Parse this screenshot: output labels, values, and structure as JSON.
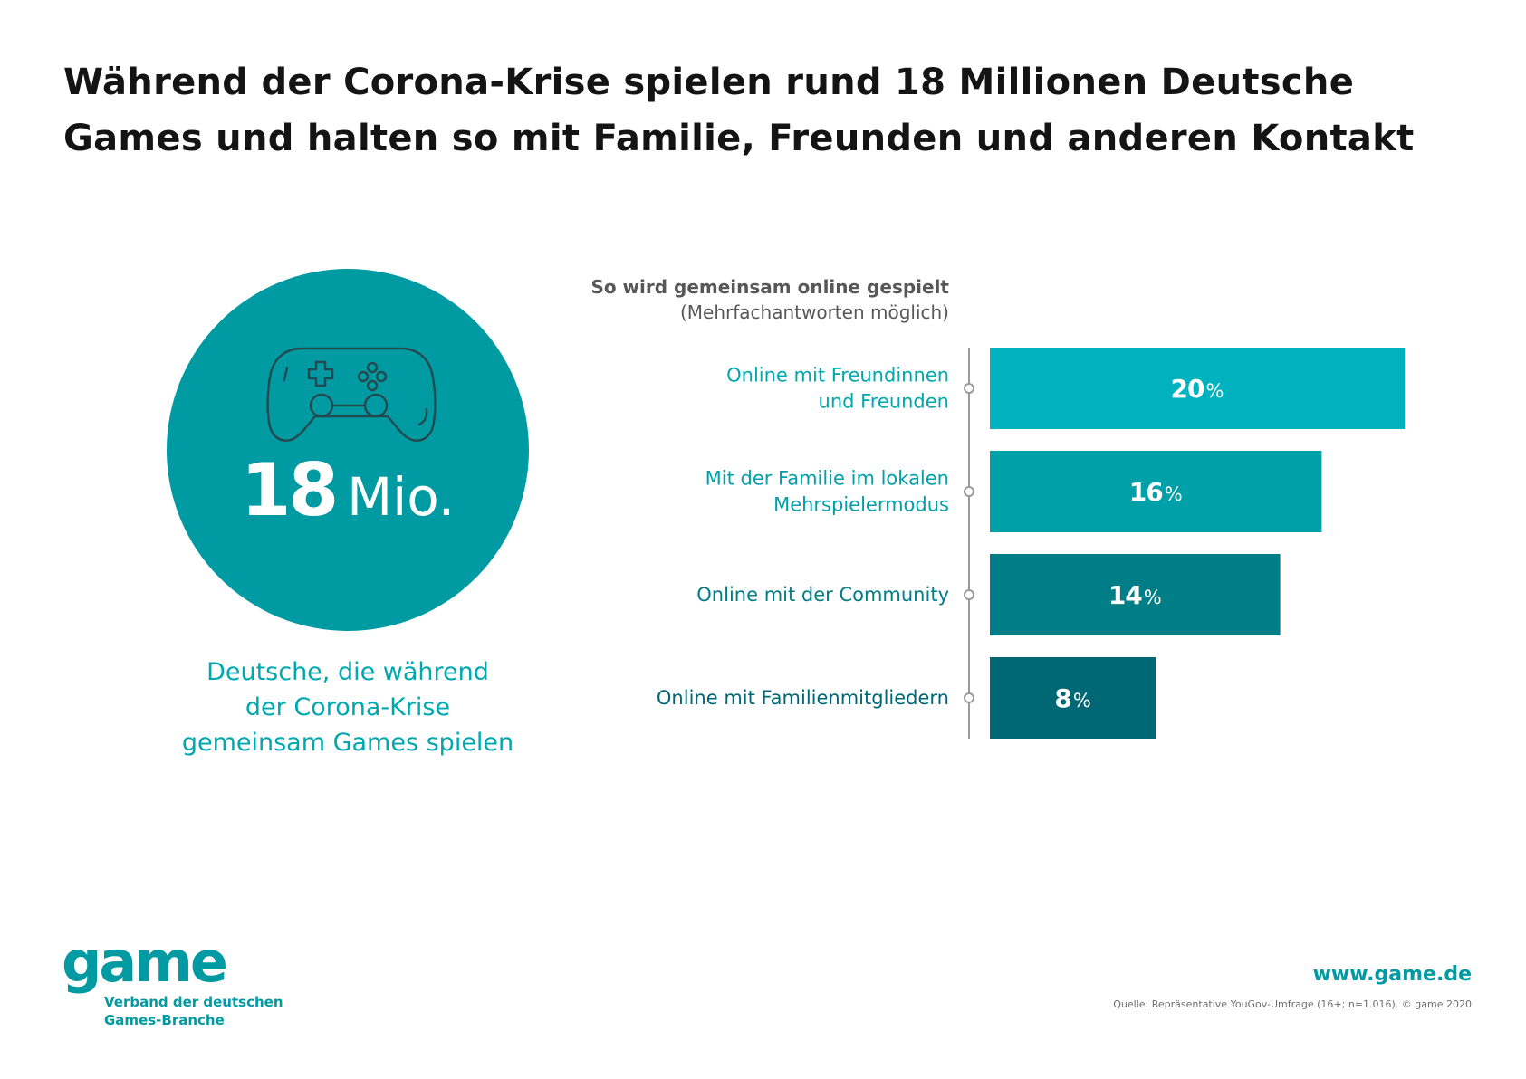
{
  "title": {
    "line1": "Während der Corona-Krise spielen rund 18 Millionen Deutsche",
    "line2": "Games und halten so mit Familie, Freunden und anderen Kontakt"
  },
  "highlight": {
    "number": "18",
    "unit": "Mio.",
    "icon": "gamepad-icon",
    "caption_lines": [
      "Deutsche, die während",
      "der Corona-Krise",
      "gemeinsam Games spielen"
    ]
  },
  "chart_data": {
    "type": "bar",
    "orientation": "horizontal",
    "title": "So wird gemeinsam online gespielt",
    "subtitle": "(Mehrfachantworten möglich)",
    "unit": "%",
    "categories": [
      [
        "Online mit Freundinnen",
        "und Freunden"
      ],
      [
        "Mit der Familie im lokalen",
        "Mehrspielermodus"
      ],
      [
        "Online mit der Community"
      ],
      [
        "Online mit Familienmitgliedern"
      ]
    ],
    "values": [
      20,
      16,
      14,
      8
    ],
    "value_labels": [
      "20",
      "16",
      "14",
      "8"
    ],
    "colors": [
      "#00b2bd",
      "#00a0a9",
      "#007e88",
      "#006874"
    ],
    "label_colors": [
      "#00a8b0",
      "#00a0a9",
      "#007e88",
      "#006874"
    ],
    "xlim": [
      0,
      20
    ],
    "grid": false,
    "legend": "none"
  },
  "footer": {
    "logo_text": "game",
    "logo_sub_lines": [
      "Verband der deutschen",
      "Games-Branche"
    ],
    "url": "www.game.de",
    "source": "Quelle: Repräsentative YouGov-Umfrage (16+; n=1.016). © game 2020"
  }
}
